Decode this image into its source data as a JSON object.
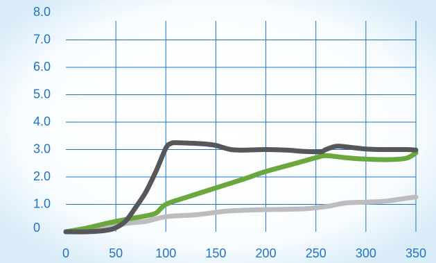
{
  "chart_data": {
    "type": "line",
    "title": "",
    "xlabel": "",
    "ylabel": "",
    "x_ticks": [
      "0",
      "50",
      "100",
      "150",
      "200",
      "250",
      "300",
      "350"
    ],
    "y_ticks": [
      "0",
      "1.0",
      "2.0",
      "3.0",
      "4.0",
      "5.0",
      "6.0",
      "7.0",
      "8.0"
    ],
    "xlim": [
      0,
      350
    ],
    "ylim": [
      0,
      8
    ],
    "grid": true,
    "colors": {
      "grid": "#1e73c8",
      "tick_text": "#1e73c8",
      "background_edge": "#d9ecf8"
    },
    "series": [
      {
        "color": "#bdbdc0",
        "x": [
          0,
          20,
          40,
          60,
          80,
          100,
          130,
          160,
          190,
          220,
          240,
          260,
          280,
          300,
          320,
          340,
          350
        ],
        "y": [
          0.0,
          0.03,
          0.12,
          0.3,
          0.38,
          0.55,
          0.62,
          0.75,
          0.8,
          0.82,
          0.84,
          0.92,
          1.05,
          1.08,
          1.12,
          1.22,
          1.27
        ]
      },
      {
        "color": "#6aa83e",
        "x": [
          0,
          20,
          40,
          60,
          80,
          90,
          100,
          120,
          150,
          180,
          200,
          230,
          250,
          260,
          280,
          300,
          320,
          340,
          350
        ],
        "y": [
          0.0,
          0.13,
          0.3,
          0.45,
          0.58,
          0.68,
          1.0,
          1.25,
          1.6,
          1.95,
          2.2,
          2.5,
          2.7,
          2.78,
          2.7,
          2.65,
          2.63,
          2.68,
          2.88
        ]
      },
      {
        "color": "#57575b",
        "x": [
          0,
          20,
          40,
          50,
          60,
          70,
          80,
          90,
          100,
          105,
          110,
          125,
          140,
          150,
          165,
          180,
          200,
          220,
          240,
          255,
          260,
          270,
          280,
          300,
          320,
          340,
          350
        ],
        "y": [
          0.0,
          0.0,
          0.05,
          0.15,
          0.4,
          0.9,
          1.45,
          2.2,
          3.05,
          3.22,
          3.25,
          3.23,
          3.2,
          3.15,
          3.0,
          2.98,
          3.0,
          2.98,
          2.93,
          2.92,
          3.0,
          3.12,
          3.1,
          3.02,
          3.0,
          3.0,
          2.98
        ]
      }
    ]
  }
}
